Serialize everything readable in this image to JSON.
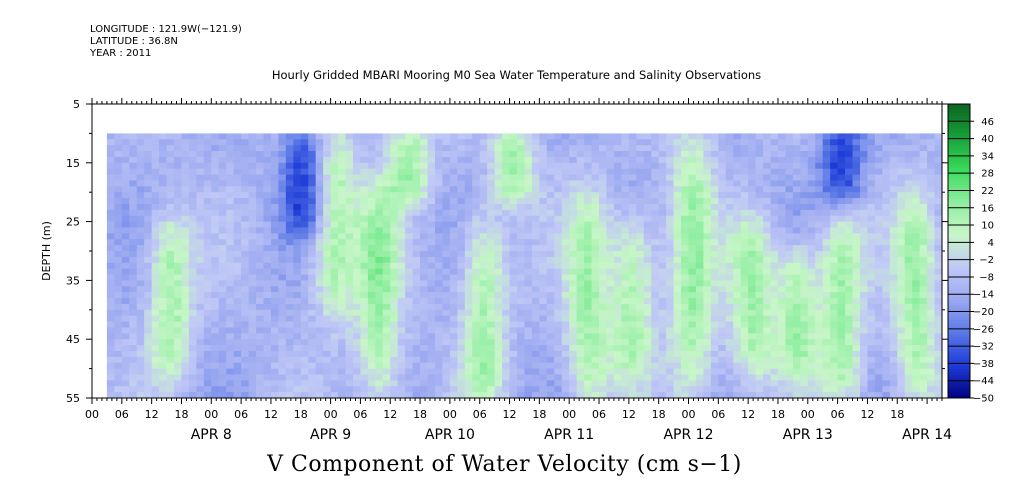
{
  "metadata": {
    "longitude": "LONGITUDE : 121.9W(−121.9)",
    "latitude": "LATITUDE : 36.8N",
    "year": "YEAR : 2011"
  },
  "plot_title": "Hourly Gridded MBARI Mooring M0 Sea Water Temperature and Salinity Observations",
  "variable_title": "V Component of Water Velocity (cm s−1)",
  "chart_data": {
    "type": "heatmap",
    "title": "Hourly Gridded MBARI Mooring M0 Sea Water Temperature and Salinity Observations",
    "xlabel": "",
    "ylabel": "DEPTH (m)",
    "x_range": [
      "2011-04-07T00:00",
      "2011-04-14T00:00"
    ],
    "data_start": "2011-04-07T03:00",
    "y_range": [
      5,
      55
    ],
    "y_inverted": true,
    "y_data_top": 10,
    "y_ticks": [
      5,
      15,
      25,
      35,
      45,
      55
    ],
    "x_tick_labels": [
      "00",
      "06",
      "12",
      "18",
      "00",
      "06",
      "12",
      "18",
      "00",
      "06",
      "12",
      "18",
      "00",
      "06",
      "12",
      "18",
      "00",
      "06",
      "12",
      "18",
      "00",
      "06",
      "12",
      "18",
      "00",
      "06",
      "12",
      "18"
    ],
    "date_labels": [
      "APR  8",
      "APR  9",
      "APR 10",
      "APR 11",
      "APR 12",
      "APR 13",
      "APR 14"
    ],
    "colorbar": {
      "labels": [
        46,
        40,
        34,
        28,
        22,
        16,
        10,
        4,
        -2,
        -8,
        -14,
        -20,
        -26,
        -32,
        -38,
        -44,
        -50
      ],
      "range": [
        -50,
        52
      ],
      "colors_low_to_high": [
        "#000080",
        "#1e3cd8",
        "#5a78e6",
        "#9aa8f0",
        "#c0c8f6",
        "#c8f6c8",
        "#8eeea0",
        "#3ada5a",
        "#17a03a",
        "#0a6420"
      ]
    },
    "features": [
      {
        "time": "2011-04-07T15:00",
        "sign": "positive",
        "depth_range": [
          25,
          50
        ]
      },
      {
        "time": "2011-04-08T18:00",
        "sign": "negative",
        "depth_range": [
          10,
          25
        ]
      },
      {
        "time": "2011-04-09T00:00",
        "sign": "positive",
        "depth_range": [
          10,
          40
        ]
      },
      {
        "time": "2011-04-09T09:00",
        "sign": "positive",
        "depth_range": [
          20,
          55
        ]
      },
      {
        "time": "2011-04-09T15:00",
        "sign": "positive",
        "depth_range": [
          10,
          20
        ]
      },
      {
        "time": "2011-04-10T06:00",
        "sign": "positive",
        "depth_range": [
          25,
          55
        ]
      },
      {
        "time": "2011-04-10T12:00",
        "sign": "positive",
        "depth_range": [
          10,
          20
        ]
      },
      {
        "time": "2011-04-11T03:00",
        "sign": "positive",
        "depth_range": [
          20,
          55
        ]
      },
      {
        "time": "2011-04-11T12:00",
        "sign": "positive",
        "depth_range": [
          25,
          50
        ]
      },
      {
        "time": "2011-04-12T00:00",
        "sign": "positive",
        "depth_range": [
          10,
          55
        ]
      },
      {
        "time": "2011-04-12T12:00",
        "sign": "positive",
        "depth_range": [
          25,
          50
        ]
      },
      {
        "time": "2011-04-12T21:00",
        "sign": "positive",
        "depth_range": [
          30,
          50
        ]
      },
      {
        "time": "2011-04-13T06:00",
        "sign": "negative",
        "depth_range": [
          10,
          20
        ]
      },
      {
        "time": "2011-04-13T06:00",
        "sign": "positive",
        "depth_range": [
          25,
          55
        ]
      },
      {
        "time": "2011-04-13T21:00",
        "sign": "positive",
        "depth_range": [
          20,
          55
        ]
      }
    ]
  }
}
